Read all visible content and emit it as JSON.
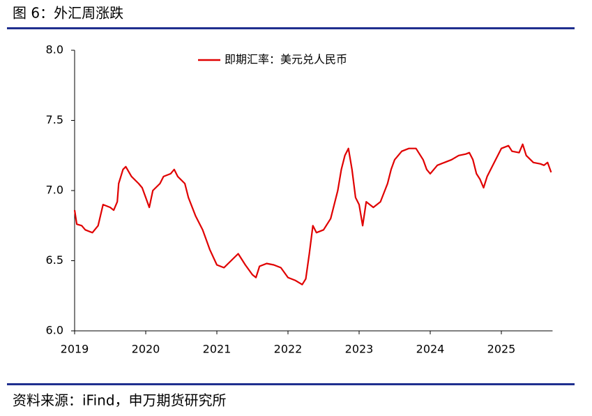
{
  "chart_data": {
    "type": "line",
    "title": "图 6：外汇周涨跌",
    "source": "资料来源：iFind，申万期货研究所",
    "xlim": [
      2019,
      2025.72
    ],
    "xticks": [
      2019,
      2020,
      2021,
      2022,
      2023,
      2024,
      2025
    ],
    "ylim": [
      6,
      8
    ],
    "yticks": [
      {
        "value": 6,
        "label": "6.0"
      },
      {
        "value": 6.5,
        "label": "6.5"
      },
      {
        "value": 7,
        "label": "7.0"
      },
      {
        "value": 7.5,
        "label": "7.5"
      },
      {
        "value": 8,
        "label": "8.0"
      }
    ],
    "legend": "top",
    "series": [
      {
        "name": "即期汇率：美元兑人民币",
        "color": "#e00000",
        "x": [
          2019.0,
          2019.03,
          2019.1,
          2019.15,
          2019.25,
          2019.33,
          2019.4,
          2019.5,
          2019.55,
          2019.6,
          2019.62,
          2019.68,
          2019.72,
          2019.8,
          2019.9,
          2019.95,
          2020.0,
          2020.05,
          2020.1,
          2020.2,
          2020.25,
          2020.35,
          2020.4,
          2020.45,
          2020.55,
          2020.6,
          2020.7,
          2020.8,
          2020.85,
          2020.9,
          2021.0,
          2021.1,
          2021.2,
          2021.3,
          2021.4,
          2021.5,
          2021.55,
          2021.6,
          2021.7,
          2021.8,
          2021.9,
          2022.0,
          2022.1,
          2022.2,
          2022.25,
          2022.3,
          2022.35,
          2022.4,
          2022.5,
          2022.6,
          2022.65,
          2022.7,
          2022.75,
          2022.8,
          2022.85,
          2022.9,
          2022.95,
          2023.0,
          2023.05,
          2023.1,
          2023.2,
          2023.3,
          2023.4,
          2023.45,
          2023.5,
          2023.6,
          2023.7,
          2023.8,
          2023.9,
          2023.95,
          2024.0,
          2024.1,
          2024.2,
          2024.3,
          2024.4,
          2024.5,
          2024.55,
          2024.6,
          2024.65,
          2024.7,
          2024.75,
          2024.8,
          2024.9,
          2025.0,
          2025.1,
          2025.15,
          2025.25,
          2025.3,
          2025.35,
          2025.45,
          2025.55,
          2025.6,
          2025.65,
          2025.7
        ],
        "values": [
          6.86,
          6.76,
          6.75,
          6.72,
          6.7,
          6.75,
          6.9,
          6.88,
          6.86,
          6.92,
          7.05,
          7.15,
          7.17,
          7.1,
          7.05,
          7.02,
          6.95,
          6.88,
          7.0,
          7.05,
          7.1,
          7.12,
          7.15,
          7.1,
          7.05,
          6.95,
          6.82,
          6.72,
          6.65,
          6.58,
          6.47,
          6.45,
          6.5,
          6.55,
          6.47,
          6.4,
          6.38,
          6.46,
          6.48,
          6.47,
          6.45,
          6.38,
          6.36,
          6.33,
          6.37,
          6.55,
          6.75,
          6.7,
          6.72,
          6.8,
          6.9,
          7.0,
          7.15,
          7.25,
          7.3,
          7.15,
          6.95,
          6.9,
          6.75,
          6.92,
          6.88,
          6.92,
          7.05,
          7.15,
          7.22,
          7.28,
          7.3,
          7.3,
          7.22,
          7.15,
          7.12,
          7.18,
          7.2,
          7.22,
          7.25,
          7.26,
          7.27,
          7.22,
          7.12,
          7.08,
          7.02,
          7.1,
          7.2,
          7.3,
          7.32,
          7.28,
          7.27,
          7.33,
          7.25,
          7.2,
          7.19,
          7.18,
          7.2,
          7.13
        ]
      }
    ]
  }
}
